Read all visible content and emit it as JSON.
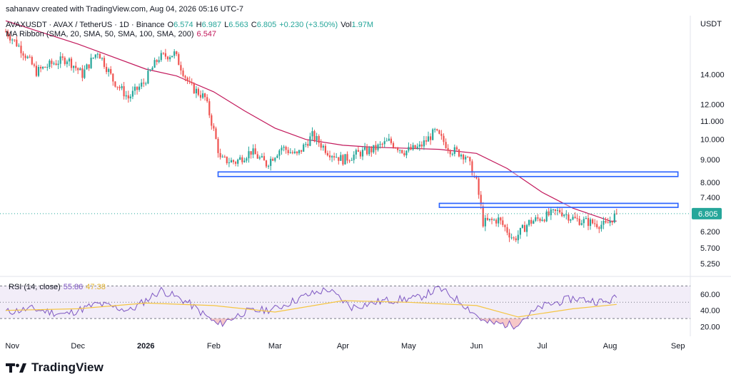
{
  "header": {
    "credit": "sahanavv created with TradingView.com, Aug 04, 2026 05:16 UTC-7",
    "symbol_line": {
      "symbol": "AVAXUSDT · AVAX / TetherUS · 1D · Binance",
      "o_label": "O",
      "o_value": "6.574",
      "h_label": "H",
      "h_value": "6.987",
      "l_label": "L",
      "l_value": "6.563",
      "c_label": "C",
      "c_value": "6.805",
      "change": "+0.230 (+3.50%)",
      "vol_label": "Vol",
      "vol_value": "1.97M"
    },
    "ma_line": {
      "label": "MA Ribbon (SMA, 20, SMA, 50, SMA, 100, SMA, 200)",
      "value": "6.547"
    }
  },
  "rsi_header": {
    "label": "RSI (14, close)",
    "rsi_value": "55.86",
    "ma_value": "47.38"
  },
  "price_axis": {
    "currency": "USDT",
    "last_price": "6.805",
    "ticks": [
      "14.000",
      "12.000",
      "11.000",
      "10.000",
      "9.000",
      "8.000",
      "7.400",
      "6.200",
      "5.700",
      "5.250"
    ]
  },
  "rsi_axis": {
    "ticks": [
      "60.00",
      "40.00",
      "20.00"
    ]
  },
  "time_axis": {
    "labels": [
      "Nov",
      "Dec",
      "2026",
      "Feb",
      "Mar",
      "Apr",
      "May",
      "Jun",
      "Jul",
      "Aug",
      "Sep"
    ]
  },
  "brand": {
    "name": "TradingView"
  },
  "colors": {
    "up": "#26a69a",
    "down": "#ef5350",
    "ma": "#c2185b",
    "zone": "#2962ff",
    "rsi": "#7e57c2",
    "rsi_ma": "#f5c542",
    "rsi_band": "#ede7f6",
    "last_price_line": "#26a69a"
  },
  "chart_data": {
    "type": "candlestick",
    "scale": "log",
    "ylim": [
      4.95,
      19.0
    ],
    "xlim": [
      "2025-10-29",
      "2026-09-05"
    ],
    "x_labels": [
      "Nov",
      "Dec",
      "2026",
      "Feb",
      "Mar",
      "Apr",
      "May",
      "Jun",
      "Jul",
      "Aug",
      "Sep"
    ],
    "close_series": [
      [
        "2025-10-29",
        17.5
      ],
      [
        "2025-11-05",
        16.0
      ],
      [
        "2025-11-12",
        14.2
      ],
      [
        "2025-11-19",
        14.8
      ],
      [
        "2025-11-26",
        15.2
      ],
      [
        "2025-12-03",
        14.0
      ],
      [
        "2025-12-10",
        15.8
      ],
      [
        "2025-12-17",
        13.6
      ],
      [
        "2025-12-24",
        12.4
      ],
      [
        "2025-12-31",
        13.4
      ],
      [
        "2026-01-07",
        15.3
      ],
      [
        "2026-01-14",
        15.6
      ],
      [
        "2026-01-21",
        13.2
      ],
      [
        "2026-01-28",
        12.4
      ],
      [
        "2026-02-04",
        9.0
      ],
      [
        "2026-02-11",
        8.9
      ],
      [
        "2026-02-18",
        9.4
      ],
      [
        "2026-02-25",
        8.8
      ],
      [
        "2026-03-04",
        9.6
      ],
      [
        "2026-03-11",
        9.2
      ],
      [
        "2026-03-18",
        10.2
      ],
      [
        "2026-03-25",
        9.4
      ],
      [
        "2026-04-01",
        9.0
      ],
      [
        "2026-04-08",
        9.3
      ],
      [
        "2026-04-15",
        9.5
      ],
      [
        "2026-04-22",
        9.9
      ],
      [
        "2026-04-29",
        9.4
      ],
      [
        "2026-05-06",
        9.6
      ],
      [
        "2026-05-13",
        10.4
      ],
      [
        "2026-05-20",
        9.5
      ],
      [
        "2026-05-27",
        9.2
      ],
      [
        "2026-06-01",
        8.0
      ],
      [
        "2026-06-04",
        6.5
      ],
      [
        "2026-06-11",
        6.6
      ],
      [
        "2026-06-18",
        5.95
      ],
      [
        "2026-06-25",
        6.5
      ],
      [
        "2026-07-02",
        6.7
      ],
      [
        "2026-07-09",
        6.9
      ],
      [
        "2026-07-16",
        6.6
      ],
      [
        "2026-07-23",
        6.5
      ],
      [
        "2026-07-30",
        6.4
      ],
      [
        "2026-08-04",
        6.805
      ]
    ],
    "ma_series": [
      [
        "2025-10-29",
        18.5
      ],
      [
        "2025-12-01",
        16.4
      ],
      [
        "2026-01-01",
        14.4
      ],
      [
        "2026-01-15",
        13.9
      ],
      [
        "2026-02-01",
        12.8
      ],
      [
        "2026-02-15",
        11.6
      ],
      [
        "2026-03-01",
        10.6
      ],
      [
        "2026-03-15",
        10.0
      ],
      [
        "2026-04-01",
        9.7
      ],
      [
        "2026-04-15",
        9.6
      ],
      [
        "2026-05-01",
        9.55
      ],
      [
        "2026-05-15",
        9.5
      ],
      [
        "2026-06-01",
        9.3
      ],
      [
        "2026-06-15",
        8.6
      ],
      [
        "2026-07-01",
        7.6
      ],
      [
        "2026-07-15",
        7.0
      ],
      [
        "2026-08-01",
        6.55
      ],
      [
        "2026-08-04",
        6.547
      ]
    ],
    "zones": [
      {
        "from": "2026-02-03",
        "to": "2026-09-01",
        "low": 8.25,
        "high": 8.45
      },
      {
        "from": "2026-05-15",
        "to": "2026-09-01",
        "low": 7.03,
        "high": 7.18
      }
    ],
    "last_price": 6.805,
    "rsi": {
      "ylim": [
        10,
        80
      ],
      "band": [
        30,
        70
      ],
      "midline": 50,
      "series": [
        [
          "2025-10-29",
          38
        ],
        [
          "2025-11-10",
          42
        ],
        [
          "2025-11-25",
          35
        ],
        [
          "2025-12-10",
          48
        ],
        [
          "2025-12-25",
          40
        ],
        [
          "2026-01-08",
          65
        ],
        [
          "2026-01-20",
          50
        ],
        [
          "2026-02-03",
          22
        ],
        [
          "2026-02-15",
          38
        ],
        [
          "2026-03-01",
          42
        ],
        [
          "2026-03-15",
          58
        ],
        [
          "2026-03-25",
          66
        ],
        [
          "2026-04-05",
          44
        ],
        [
          "2026-04-20",
          52
        ],
        [
          "2026-05-05",
          55
        ],
        [
          "2026-05-15",
          67
        ],
        [
          "2026-05-25",
          50
        ],
        [
          "2026-06-05",
          25
        ],
        [
          "2026-06-18",
          22
        ],
        [
          "2026-07-01",
          45
        ],
        [
          "2026-07-15",
          55
        ],
        [
          "2026-07-30",
          50
        ],
        [
          "2026-08-04",
          55.86
        ]
      ],
      "ma_series": [
        [
          "2025-10-29",
          40
        ],
        [
          "2025-12-01",
          42
        ],
        [
          "2026-01-01",
          49
        ],
        [
          "2026-02-01",
          46
        ],
        [
          "2026-03-01",
          38
        ],
        [
          "2026-04-01",
          52
        ],
        [
          "2026-05-01",
          50
        ],
        [
          "2026-06-01",
          46
        ],
        [
          "2026-06-20",
          32
        ],
        [
          "2026-07-15",
          42
        ],
        [
          "2026-08-04",
          47.38
        ]
      ]
    }
  }
}
